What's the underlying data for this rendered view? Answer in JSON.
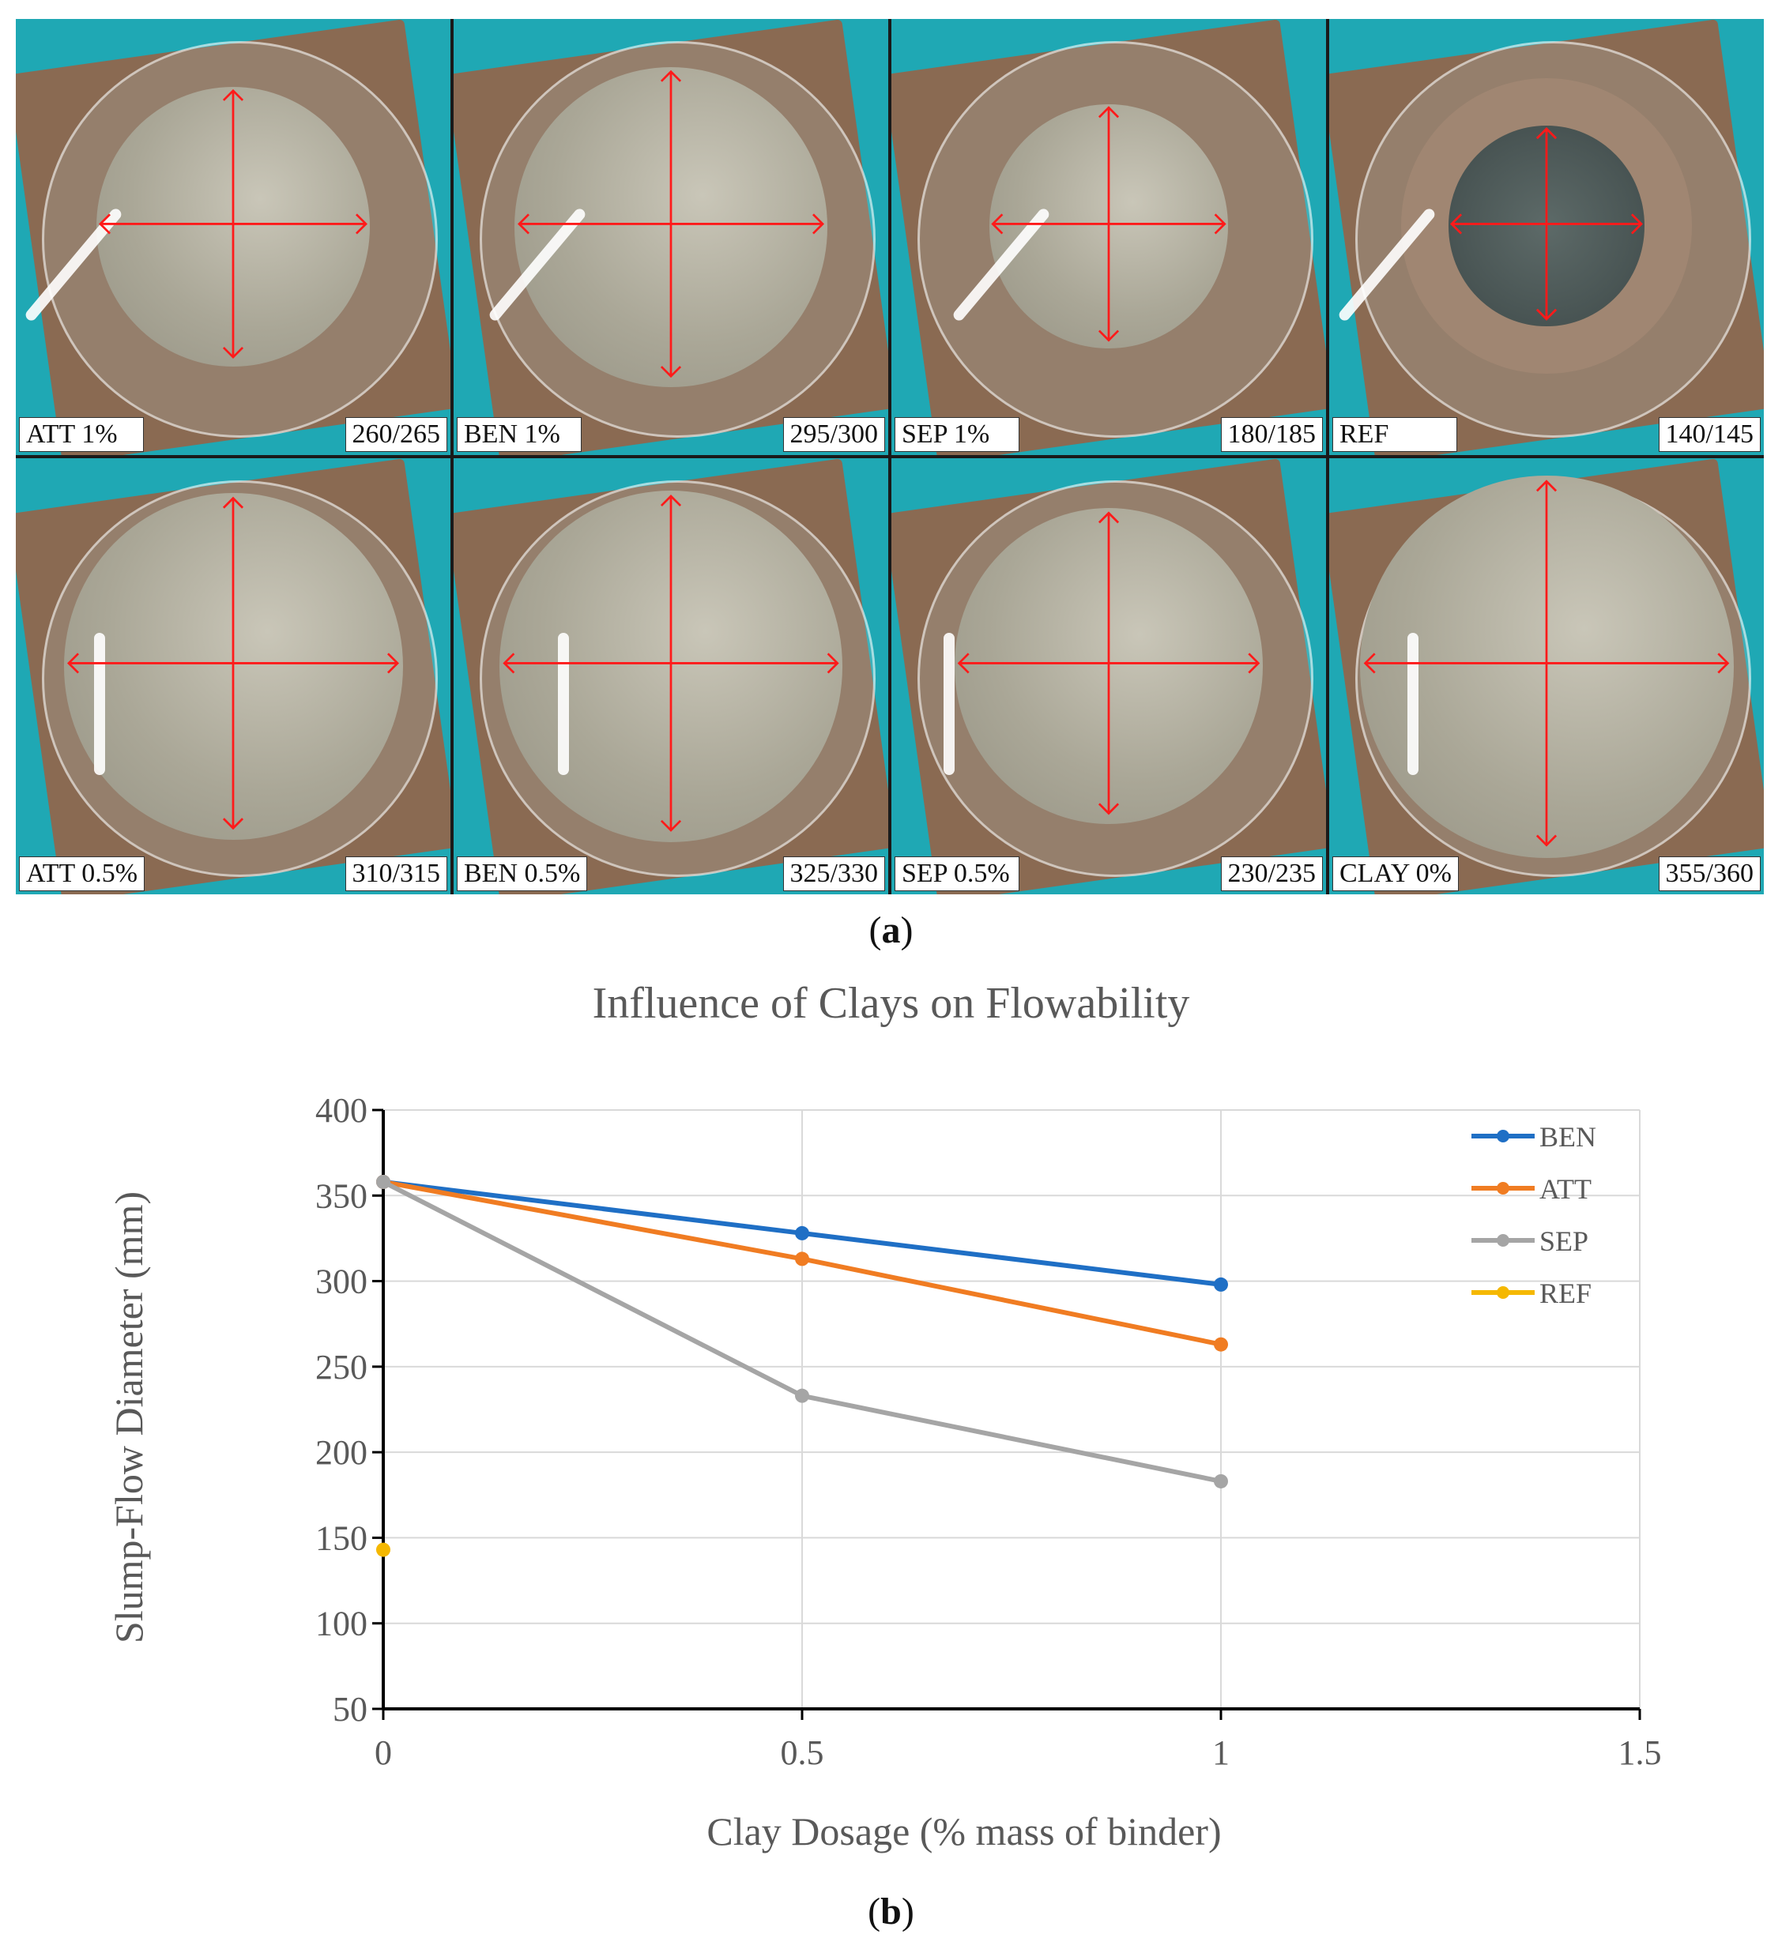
{
  "photos": [
    {
      "name": "ATT 1%",
      "value": "260/265",
      "dark": false,
      "scale": 0.63
    },
    {
      "name": "BEN 1%",
      "value": "295/300",
      "dark": false,
      "scale": 0.72
    },
    {
      "name": "SEP 1%",
      "value": "180/185",
      "dark": false,
      "scale": 0.55
    },
    {
      "name": "REF",
      "value": "140/145",
      "dark": true,
      "scale": 0.45
    },
    {
      "name": "ATT 0.5%",
      "value": "310/315",
      "dark": false,
      "scale": 0.78
    },
    {
      "name": "BEN 0.5%",
      "value": "325/330",
      "dark": false,
      "scale": 0.79
    },
    {
      "name": "SEP 0.5%",
      "value": "230/235",
      "dark": false,
      "scale": 0.71
    },
    {
      "name": "CLAY 0%",
      "value": "355/360",
      "dark": false,
      "scale": 0.86
    }
  ],
  "panel_a_label": "a",
  "panel_b_label": "b",
  "chart_data": {
    "type": "line",
    "title": "Influence of Clays on Flowability",
    "xlabel": "Clay Dosage (% mass of binder)",
    "ylabel": "Slump-Flow Diameter (mm)",
    "xlim": [
      0,
      1.5
    ],
    "ylim": [
      50,
      400
    ],
    "xticks": [
      0,
      0.5,
      1,
      1.5
    ],
    "yticks": [
      50,
      100,
      150,
      200,
      250,
      300,
      350,
      400
    ],
    "xtick_labels": [
      "0",
      "0.5",
      "1",
      "1.5"
    ],
    "ytick_labels": [
      "50",
      "100",
      "150",
      "200",
      "250",
      "300",
      "350",
      "400"
    ],
    "grid": true,
    "legend_position": "top-right",
    "series": [
      {
        "name": "BEN",
        "color": "#1f6fc5",
        "x": [
          0,
          0.5,
          1
        ],
        "y": [
          358,
          328,
          298
        ]
      },
      {
        "name": "ATT",
        "color": "#f07c22",
        "x": [
          0,
          0.5,
          1
        ],
        "y": [
          358,
          313,
          263
        ]
      },
      {
        "name": "SEP",
        "color": "#a5a5a5",
        "x": [
          0,
          0.5,
          1
        ],
        "y": [
          358,
          233,
          183
        ]
      },
      {
        "name": "REF",
        "color": "#f5b800",
        "x": [
          0
        ],
        "y": [
          143
        ]
      }
    ]
  }
}
